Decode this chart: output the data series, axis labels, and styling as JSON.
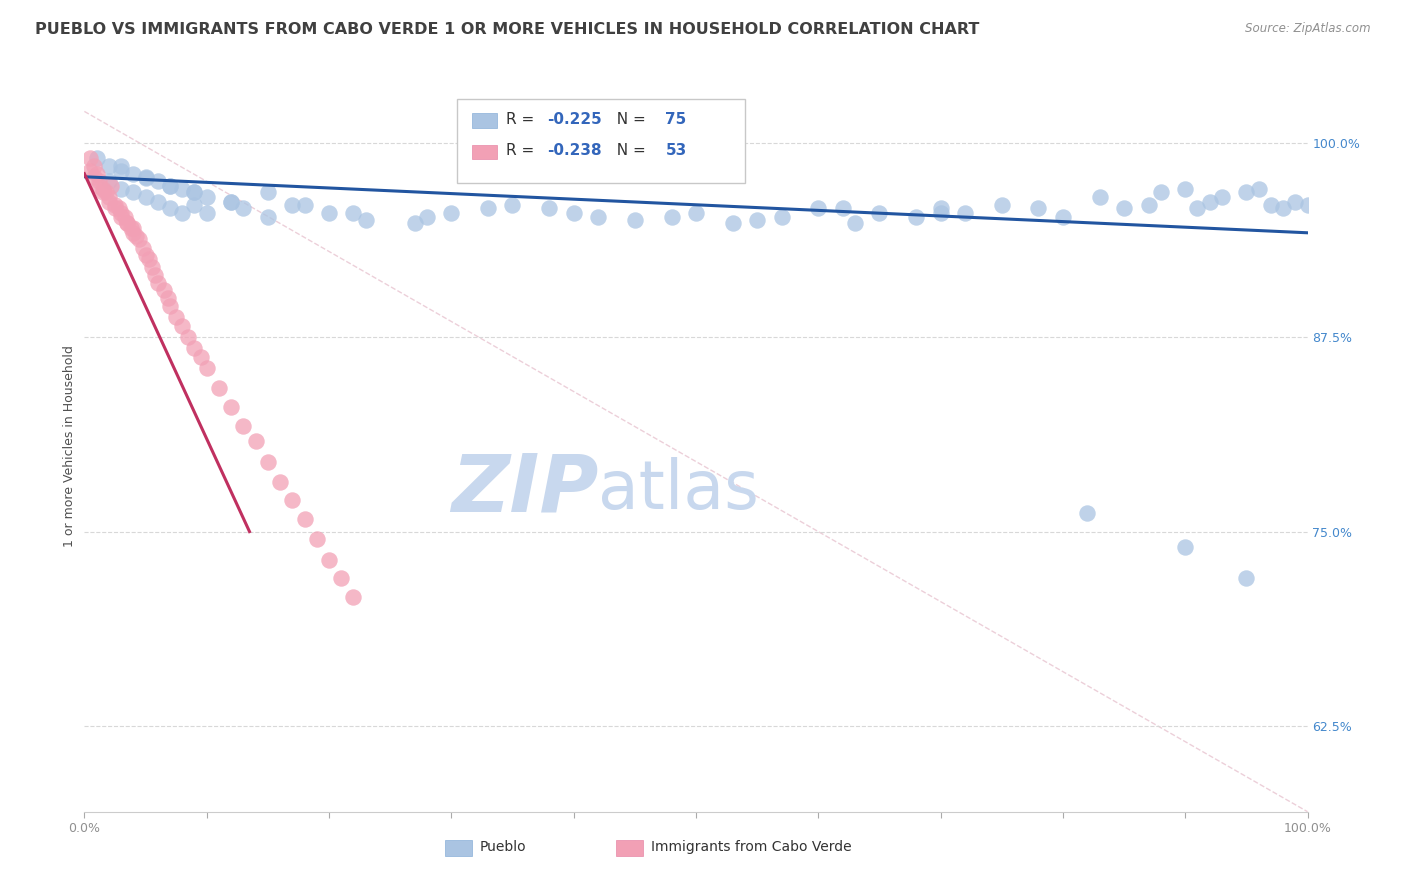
{
  "title": "PUEBLO VS IMMIGRANTS FROM CABO VERDE 1 OR MORE VEHICLES IN HOUSEHOLD CORRELATION CHART",
  "source": "Source: ZipAtlas.com",
  "ylabel": "1 or more Vehicles in Household",
  "r1": -0.225,
  "n1": 75,
  "r2": -0.238,
  "n2": 53,
  "color_blue": "#aac4e2",
  "color_pink": "#f2a0b5",
  "line_color_blue": "#2255a0",
  "line_color_pink": "#c03060",
  "ytick_labels": [
    "62.5%",
    "75.0%",
    "87.5%",
    "100.0%"
  ],
  "ytick_values": [
    0.625,
    0.75,
    0.875,
    1.0
  ],
  "xlim": [
    0.0,
    1.0
  ],
  "ylim": [
    0.57,
    1.04
  ],
  "blue_scatter_x": [
    0.01,
    0.02,
    0.02,
    0.03,
    0.03,
    0.04,
    0.04,
    0.05,
    0.05,
    0.06,
    0.06,
    0.07,
    0.07,
    0.08,
    0.08,
    0.09,
    0.09,
    0.1,
    0.1,
    0.12,
    0.13,
    0.15,
    0.17,
    0.2,
    0.23,
    0.27,
    0.3,
    0.35,
    0.38,
    0.42,
    0.45,
    0.5,
    0.53,
    0.57,
    0.6,
    0.63,
    0.65,
    0.68,
    0.7,
    0.72,
    0.75,
    0.78,
    0.8,
    0.83,
    0.85,
    0.87,
    0.88,
    0.9,
    0.91,
    0.92,
    0.93,
    0.95,
    0.96,
    0.97,
    0.98,
    0.99,
    1.0,
    0.03,
    0.05,
    0.07,
    0.09,
    0.12,
    0.15,
    0.18,
    0.22,
    0.28,
    0.33,
    0.4,
    0.48,
    0.55,
    0.62,
    0.7,
    0.82,
    0.9,
    0.95
  ],
  "blue_scatter_y": [
    0.99,
    0.985,
    0.975,
    0.982,
    0.97,
    0.98,
    0.968,
    0.977,
    0.965,
    0.975,
    0.962,
    0.972,
    0.958,
    0.97,
    0.955,
    0.968,
    0.96,
    0.965,
    0.955,
    0.962,
    0.958,
    0.952,
    0.96,
    0.955,
    0.95,
    0.948,
    0.955,
    0.96,
    0.958,
    0.952,
    0.95,
    0.955,
    0.948,
    0.952,
    0.958,
    0.948,
    0.955,
    0.952,
    0.958,
    0.955,
    0.96,
    0.958,
    0.952,
    0.965,
    0.958,
    0.96,
    0.968,
    0.97,
    0.958,
    0.962,
    0.965,
    0.968,
    0.97,
    0.96,
    0.958,
    0.962,
    0.96,
    0.985,
    0.978,
    0.972,
    0.968,
    0.962,
    0.968,
    0.96,
    0.955,
    0.952,
    0.958,
    0.955,
    0.952,
    0.95,
    0.958,
    0.955,
    0.762,
    0.74,
    0.72
  ],
  "pink_scatter_x": [
    0.005,
    0.008,
    0.01,
    0.012,
    0.015,
    0.018,
    0.02,
    0.022,
    0.025,
    0.028,
    0.03,
    0.033,
    0.035,
    0.038,
    0.04,
    0.042,
    0.045,
    0.048,
    0.05,
    0.053,
    0.055,
    0.058,
    0.06,
    0.065,
    0.068,
    0.07,
    0.075,
    0.08,
    0.085,
    0.09,
    0.095,
    0.1,
    0.11,
    0.12,
    0.13,
    0.14,
    0.15,
    0.16,
    0.17,
    0.18,
    0.19,
    0.2,
    0.21,
    0.22,
    0.005,
    0.008,
    0.012,
    0.015,
    0.02,
    0.025,
    0.03,
    0.035,
    0.04
  ],
  "pink_scatter_y": [
    0.99,
    0.985,
    0.98,
    0.975,
    0.97,
    0.968,
    0.965,
    0.972,
    0.96,
    0.958,
    0.955,
    0.952,
    0.948,
    0.945,
    0.942,
    0.94,
    0.938,
    0.932,
    0.928,
    0.925,
    0.92,
    0.915,
    0.91,
    0.905,
    0.9,
    0.895,
    0.888,
    0.882,
    0.875,
    0.868,
    0.862,
    0.855,
    0.842,
    0.83,
    0.818,
    0.808,
    0.795,
    0.782,
    0.77,
    0.758,
    0.745,
    0.732,
    0.72,
    0.708,
    0.982,
    0.978,
    0.972,
    0.968,
    0.962,
    0.958,
    0.952,
    0.948,
    0.945
  ],
  "blue_trend_x": [
    0.0,
    1.0
  ],
  "blue_trend_y": [
    0.978,
    0.942
  ],
  "pink_trend_x": [
    0.0,
    0.135
  ],
  "pink_trend_y": [
    0.98,
    0.75
  ],
  "diag_line_x": [
    0.0,
    1.0
  ],
  "diag_line_y": [
    1.02,
    0.57
  ],
  "background_color": "#ffffff",
  "title_color": "#404040",
  "source_color": "#909090",
  "title_fontsize": 11.5,
  "axis_label_fontsize": 9,
  "tick_fontsize": 9,
  "watermark_zip": "ZIP",
  "watermark_atlas": "atlas",
  "watermark_color_zip": "#c8d8ee",
  "watermark_color_atlas": "#c8d8ee",
  "watermark_fontsize": 58
}
